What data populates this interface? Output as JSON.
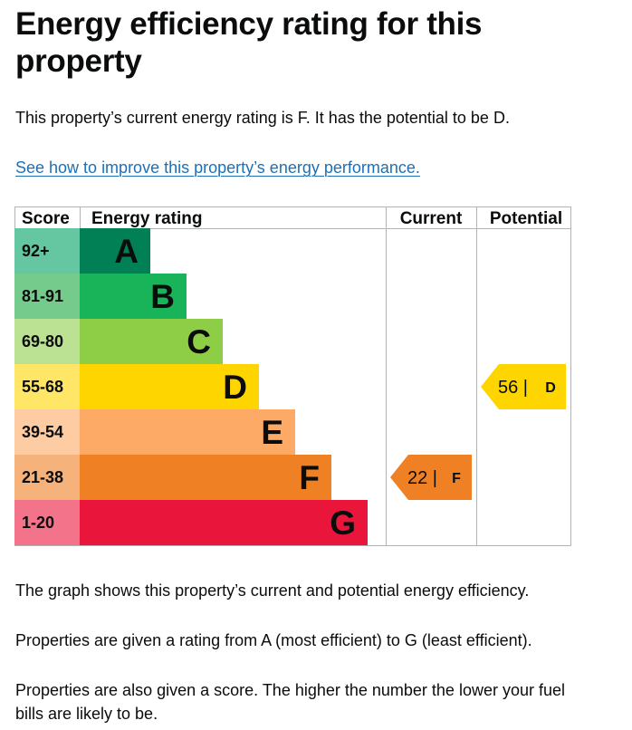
{
  "page": {
    "title": "Energy efficiency rating for this property",
    "intro": "This property’s current energy rating is F. It has the potential to be D.",
    "link_text": "See how to improve this property’s energy performance.",
    "paragraphs": [
      "The graph shows this property’s current and potential energy efficiency.",
      "Properties are given a rating from A (most efficient) to G (least efficient).",
      "Properties are also given a score. The higher the number the lower your fuel bills are likely to be."
    ]
  },
  "chart_data": {
    "type": "table",
    "columns": [
      "Score",
      "Energy rating",
      "Current",
      "Potential"
    ],
    "bands": [
      {
        "letter": "A",
        "score_range": "92+",
        "color": "#008054",
        "score_bg": "#64c7a1"
      },
      {
        "letter": "B",
        "score_range": "81-91",
        "color": "#19b459",
        "score_bg": "#75cb8c"
      },
      {
        "letter": "C",
        "score_range": "69-80",
        "color": "#8dce46",
        "score_bg": "#bbe292"
      },
      {
        "letter": "D",
        "score_range": "55-68",
        "color": "#ffd500",
        "score_bg": "#ffe666"
      },
      {
        "letter": "E",
        "score_range": "39-54",
        "color": "#fcaa65",
        "score_bg": "#fdccA3"
      },
      {
        "letter": "F",
        "score_range": "21-38",
        "color": "#ef8023",
        "score_bg": "#f5b37b"
      },
      {
        "letter": "G",
        "score_range": "1-20",
        "color": "#e9153b",
        "score_bg": "#f2738a"
      }
    ],
    "current": {
      "score": 22,
      "band": "F",
      "label": "22 |",
      "color": "#ef8023"
    },
    "potential": {
      "score": 56,
      "band": "D",
      "label": "56 |",
      "color": "#ffd500"
    }
  }
}
